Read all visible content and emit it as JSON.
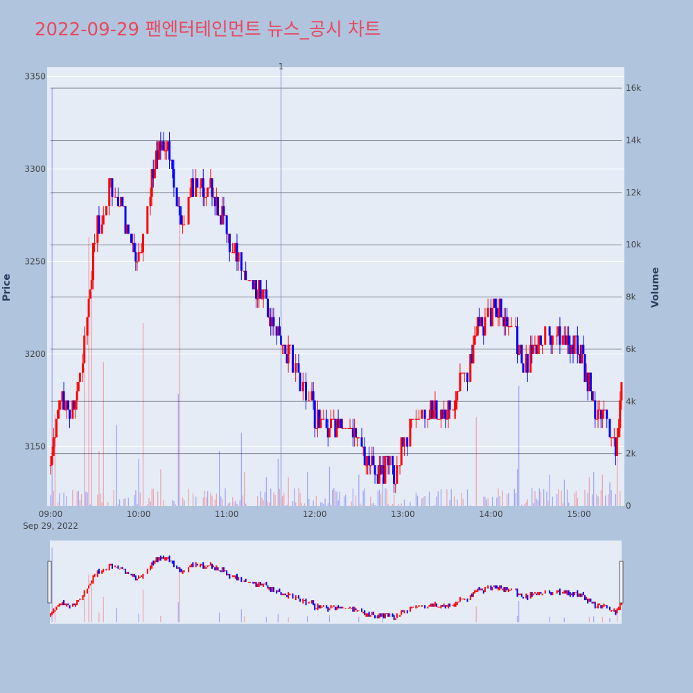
{
  "title": "2022-09-29 팬엔터테인먼트 뉴스_공시 차트",
  "chart_data": {
    "type": "candlestick",
    "title": "2022-09-29 팬엔터테인먼트 뉴스_공시 차트",
    "ylabel": "Price",
    "y2label": "Volume",
    "xdate_label": "Sep 29, 2022",
    "ylim": [
      3118,
      3355
    ],
    "y2lim": [
      0,
      16800
    ],
    "yticks": [
      3150,
      3200,
      3250,
      3300,
      3350
    ],
    "y2ticks": [
      0,
      2000,
      4000,
      6000,
      8000,
      10000,
      12000,
      14000,
      16000
    ],
    "y2ticklabels": [
      "0",
      "2k",
      "4k",
      "6k",
      "8k",
      "10k",
      "12k",
      "14k",
      "16k"
    ],
    "xticks": [
      "09:00",
      "10:00",
      "11:00",
      "12:00",
      "13:00",
      "14:00",
      "15:00"
    ],
    "x_range": [
      "09:00",
      "15:30"
    ],
    "news_marker": {
      "time": "11:37",
      "label": "1"
    },
    "up_color": "#ff0000",
    "down_color": "#0000ff",
    "bg_color": "#e5ecf6",
    "hlines_volume": [
      2000,
      4000,
      6000,
      8000,
      10000,
      12000,
      14000,
      16000
    ],
    "price_anchors": [
      [
        "09:00",
        3140
      ],
      [
        "09:05",
        3175
      ],
      [
        "09:10",
        3172
      ],
      [
        "09:15",
        3170
      ],
      [
        "09:20",
        3185
      ],
      [
        "09:25",
        3220
      ],
      [
        "09:30",
        3265
      ],
      [
        "09:35",
        3275
      ],
      [
        "09:40",
        3295
      ],
      [
        "09:45",
        3285
      ],
      [
        "09:50",
        3275
      ],
      [
        "09:55",
        3262
      ],
      [
        "10:00",
        3252
      ],
      [
        "10:05",
        3275
      ],
      [
        "10:10",
        3300
      ],
      [
        "10:15",
        3312
      ],
      [
        "10:20",
        3310
      ],
      [
        "10:25",
        3285
      ],
      [
        "10:30",
        3268
      ],
      [
        "10:35",
        3290
      ],
      [
        "10:40",
        3296
      ],
      [
        "10:45",
        3292
      ],
      [
        "10:50",
        3288
      ],
      [
        "10:55",
        3280
      ],
      [
        "11:00",
        3265
      ],
      [
        "11:05",
        3257
      ],
      [
        "11:10",
        3248
      ],
      [
        "11:15",
        3235
      ],
      [
        "11:20",
        3235
      ],
      [
        "11:25",
        3232
      ],
      [
        "11:30",
        3222
      ],
      [
        "11:35",
        3212
      ],
      [
        "11:40",
        3198
      ],
      [
        "11:45",
        3195
      ],
      [
        "11:50",
        3185
      ],
      [
        "11:55",
        3178
      ],
      [
        "12:00",
        3168
      ],
      [
        "12:05",
        3160
      ],
      [
        "12:10",
        3160
      ],
      [
        "12:15",
        3162
      ],
      [
        "12:20",
        3166
      ],
      [
        "12:25",
        3162
      ],
      [
        "12:30",
        3156
      ],
      [
        "12:35",
        3140
      ],
      [
        "12:40",
        3137
      ],
      [
        "12:45",
        3138
      ],
      [
        "12:50",
        3140
      ],
      [
        "12:55",
        3135
      ],
      [
        "13:00",
        3150
      ],
      [
        "13:05",
        3160
      ],
      [
        "13:10",
        3165
      ],
      [
        "13:15",
        3168
      ],
      [
        "13:20",
        3172
      ],
      [
        "13:25",
        3170
      ],
      [
        "13:30",
        3170
      ],
      [
        "13:35",
        3175
      ],
      [
        "13:40",
        3185
      ],
      [
        "13:45",
        3195
      ],
      [
        "13:50",
        3210
      ],
      [
        "13:55",
        3218
      ],
      [
        "14:00",
        3222
      ],
      [
        "14:05",
        3225
      ],
      [
        "14:10",
        3220
      ],
      [
        "14:15",
        3218
      ],
      [
        "14:20",
        3200
      ],
      [
        "14:25",
        3196
      ],
      [
        "14:30",
        3205
      ],
      [
        "14:35",
        3210
      ],
      [
        "14:40",
        3212
      ],
      [
        "14:45",
        3210
      ],
      [
        "14:50",
        3208
      ],
      [
        "14:55",
        3205
      ],
      [
        "15:00",
        3200
      ],
      [
        "15:05",
        3190
      ],
      [
        "15:10",
        3172
      ],
      [
        "15:15",
        3170
      ],
      [
        "15:20",
        3165
      ],
      [
        "15:25",
        3150
      ],
      [
        "15:30",
        3195
      ]
    ],
    "volume_spikes": [
      [
        "09:03",
        3500,
        "up"
      ],
      [
        "09:23",
        5300,
        "up"
      ],
      [
        "09:26",
        10300,
        "up"
      ],
      [
        "09:28",
        8200,
        "up"
      ],
      [
        "09:33",
        2100,
        "up"
      ],
      [
        "09:36",
        5500,
        "up"
      ],
      [
        "09:45",
        3100,
        "down"
      ],
      [
        "10:00",
        1800,
        "down"
      ],
      [
        "10:03",
        7000,
        "up"
      ],
      [
        "10:15",
        1400,
        "up"
      ],
      [
        "10:27",
        4300,
        "down"
      ],
      [
        "10:28",
        11000,
        "up"
      ],
      [
        "10:55",
        2100,
        "down"
      ],
      [
        "11:10",
        2800,
        "down"
      ],
      [
        "11:12",
        1300,
        "up"
      ],
      [
        "11:27",
        1100,
        "down"
      ],
      [
        "11:35",
        1800,
        "down"
      ],
      [
        "11:42",
        1100,
        "up"
      ],
      [
        "11:55",
        1300,
        "down"
      ],
      [
        "12:10",
        1500,
        "down"
      ],
      [
        "12:30",
        1200,
        "down"
      ],
      [
        "12:46",
        1100,
        "down"
      ],
      [
        "13:50",
        3400,
        "up"
      ],
      [
        "14:18",
        1400,
        "down"
      ],
      [
        "14:19",
        4600,
        "down"
      ],
      [
        "14:40",
        1200,
        "down"
      ],
      [
        "14:50",
        1000,
        "down"
      ],
      [
        "15:07",
        1100,
        "up"
      ],
      [
        "15:10",
        1300,
        "down"
      ],
      [
        "15:16",
        1200,
        "up"
      ],
      [
        "15:21",
        900,
        "down"
      ],
      [
        "15:26",
        2000,
        "up"
      ],
      [
        "15:31",
        2100,
        "down"
      ],
      [
        "09:01",
        16000,
        "down"
      ]
    ]
  }
}
